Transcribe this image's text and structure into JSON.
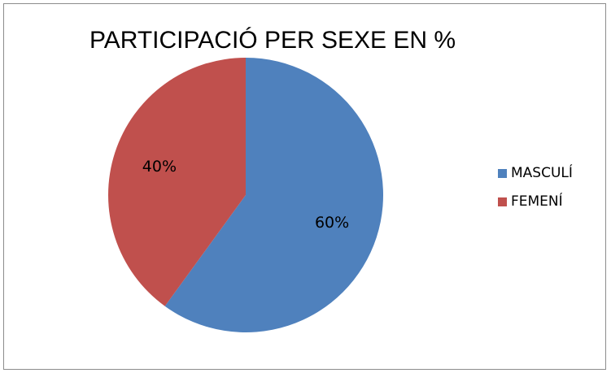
{
  "chart_data": {
    "type": "pie",
    "title": "PARTICIPACIÓ PER SEXE EN %",
    "categories": [
      "MASCULÍ",
      "FEMENÍ"
    ],
    "values": [
      60,
      40
    ],
    "labels": [
      "60%",
      "40%"
    ],
    "colors": [
      "#4f81bd",
      "#c0504d"
    ],
    "legend_position": "right",
    "start_angle_deg": 0,
    "direction": "clockwise"
  }
}
